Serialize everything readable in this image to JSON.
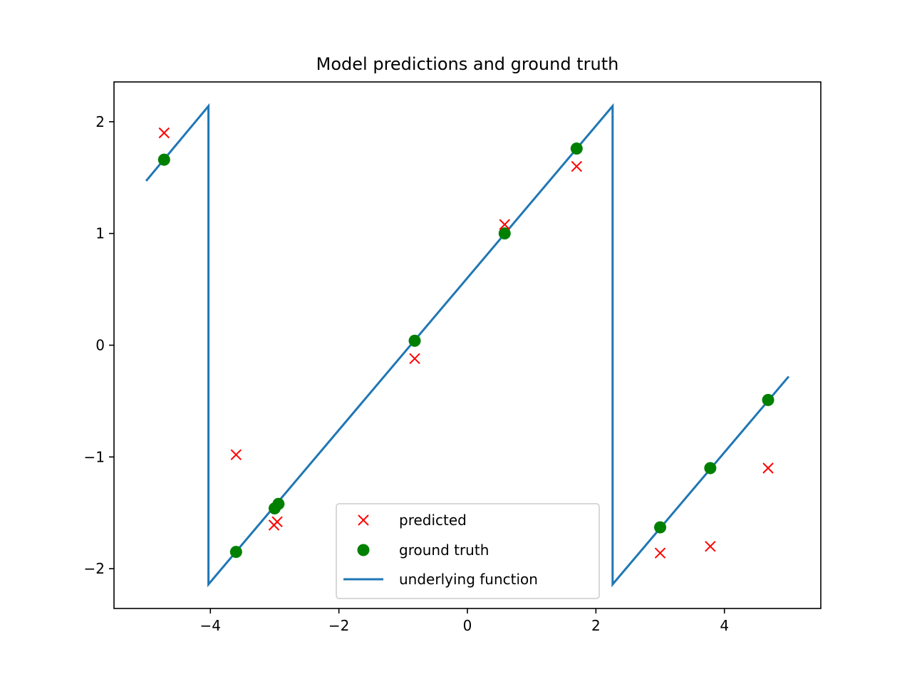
{
  "chart_data": {
    "type": "scatter",
    "title": "Model predictions and ground truth",
    "xlabel": "",
    "ylabel": "",
    "xlim": [
      -5.5,
      5.5
    ],
    "ylim": [
      -2.356,
      2.356
    ],
    "x_ticks": [
      -4,
      -2,
      0,
      2,
      4
    ],
    "y_ticks": [
      -2,
      -1,
      0,
      1,
      2
    ],
    "x_tick_labels": [
      "−4",
      "−2",
      "0",
      "2",
      "4"
    ],
    "y_tick_labels": [
      "−2",
      "−1",
      "0",
      "1",
      "2"
    ],
    "grid": false,
    "legend_position": "lower-center",
    "series": [
      {
        "name": "predicted",
        "kind": "marker-x",
        "color": "#ff0000",
        "points": [
          [
            -4.72,
            1.9
          ],
          [
            -3.6,
            -0.98
          ],
          [
            -3.01,
            -1.61
          ],
          [
            -2.96,
            -1.58
          ],
          [
            -0.82,
            -0.12
          ],
          [
            0.58,
            1.08
          ],
          [
            1.7,
            1.6
          ],
          [
            3.0,
            -1.86
          ],
          [
            3.78,
            -1.8
          ],
          [
            4.68,
            -1.1
          ]
        ]
      },
      {
        "name": "ground truth",
        "kind": "marker-circle",
        "color": "#008000",
        "points": [
          [
            -4.72,
            1.66
          ],
          [
            -3.6,
            -1.85
          ],
          [
            -3.0,
            -1.46
          ],
          [
            -2.94,
            -1.42
          ],
          [
            -0.82,
            0.04
          ],
          [
            0.58,
            1.0
          ],
          [
            1.7,
            1.76
          ],
          [
            3.0,
            -1.63
          ],
          [
            3.78,
            -1.1
          ],
          [
            4.68,
            -0.49
          ]
        ]
      },
      {
        "name": "underlying function",
        "kind": "line",
        "color": "#1f77b4",
        "points": [
          [
            -5.0,
            1.47
          ],
          [
            -4.03,
            2.14
          ],
          [
            -4.03,
            -2.14
          ],
          [
            2.26,
            2.14
          ],
          [
            2.26,
            -2.14
          ],
          [
            5.0,
            -0.28
          ]
        ]
      }
    ]
  }
}
